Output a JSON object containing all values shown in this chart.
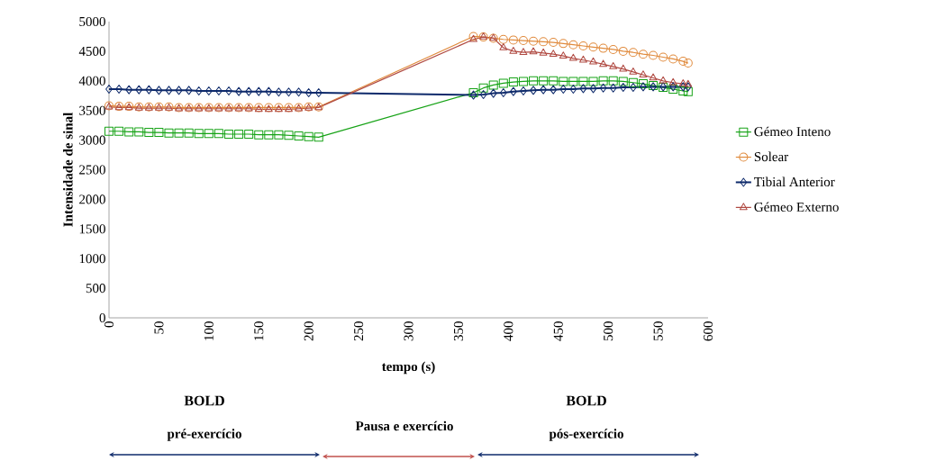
{
  "chart_data": {
    "type": "line",
    "xlabel": "tempo (s)",
    "ylabel": "Intensidade de sinal",
    "x": [
      0,
      10,
      20,
      30,
      40,
      50,
      60,
      70,
      80,
      90,
      100,
      110,
      120,
      130,
      140,
      150,
      160,
      170,
      180,
      190,
      200,
      210,
      365,
      375,
      385,
      395,
      405,
      415,
      425,
      435,
      445,
      455,
      465,
      475,
      485,
      495,
      505,
      515,
      525,
      535,
      545,
      555,
      565,
      575,
      580
    ],
    "series": [
      {
        "name": "Gémeo Inteno",
        "color": "#17a317",
        "marker": "square",
        "values": [
          3150,
          3150,
          3140,
          3140,
          3130,
          3130,
          3120,
          3120,
          3120,
          3110,
          3110,
          3110,
          3100,
          3100,
          3100,
          3090,
          3090,
          3090,
          3080,
          3070,
          3060,
          3050,
          3800,
          3880,
          3930,
          3960,
          3980,
          3990,
          4000,
          4000,
          4000,
          3990,
          3990,
          3990,
          3990,
          4000,
          4000,
          3990,
          3970,
          3950,
          3920,
          3890,
          3860,
          3830,
          3820
        ]
      },
      {
        "name": "Solear",
        "color": "#e08a3c",
        "marker": "circle",
        "values": [
          3580,
          3570,
          3570,
          3560,
          3560,
          3560,
          3560,
          3550,
          3550,
          3550,
          3550,
          3550,
          3550,
          3550,
          3550,
          3550,
          3550,
          3550,
          3550,
          3550,
          3560,
          3560,
          4750,
          4740,
          4720,
          4700,
          4690,
          4680,
          4670,
          4660,
          4650,
          4630,
          4610,
          4590,
          4570,
          4550,
          4530,
          4500,
          4480,
          4450,
          4430,
          4400,
          4370,
          4330,
          4300
        ]
      },
      {
        "name": "Tibial Anterior",
        "color": "#0e2a6b",
        "marker": "diamond",
        "values": [
          3860,
          3860,
          3850,
          3850,
          3850,
          3840,
          3840,
          3840,
          3840,
          3830,
          3830,
          3830,
          3830,
          3820,
          3820,
          3820,
          3820,
          3810,
          3810,
          3810,
          3800,
          3800,
          3760,
          3770,
          3790,
          3800,
          3820,
          3830,
          3840,
          3850,
          3850,
          3860,
          3860,
          3870,
          3870,
          3880,
          3880,
          3890,
          3890,
          3900,
          3900,
          3900,
          3900,
          3900,
          3900
        ]
      },
      {
        "name": "Gémeo Externo",
        "color": "#b04a42",
        "marker": "triangle",
        "values": [
          3560,
          3550,
          3550,
          3540,
          3540,
          3540,
          3540,
          3530,
          3530,
          3530,
          3530,
          3530,
          3530,
          3530,
          3530,
          3520,
          3520,
          3520,
          3520,
          3530,
          3540,
          3550,
          4700,
          4740,
          4720,
          4560,
          4500,
          4480,
          4490,
          4470,
          4450,
          4420,
          4380,
          4350,
          4320,
          4280,
          4240,
          4200,
          4150,
          4100,
          4050,
          4000,
          3970,
          3950,
          3940
        ]
      }
    ],
    "xlim": [
      0,
      600
    ],
    "xticks": [
      0,
      50,
      100,
      150,
      200,
      250,
      300,
      350,
      400,
      450,
      500,
      550,
      600
    ],
    "ylim": [
      0,
      5000
    ],
    "yticks": [
      0,
      500,
      1000,
      1500,
      2000,
      2500,
      3000,
      3500,
      4000,
      4500,
      5000
    ],
    "grid": false,
    "legend": "right",
    "line_style": "solid",
    "annotations": [
      "BOLD",
      "pré-exercício",
      "Pausa e exercício",
      "BOLD",
      "pós-exercício"
    ]
  }
}
